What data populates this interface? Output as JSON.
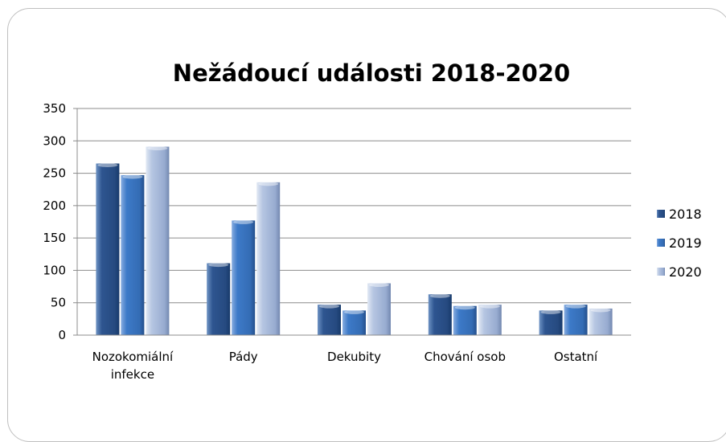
{
  "chart_data": {
    "type": "bar",
    "title": "Nežádoucí události 2018-2020",
    "xlabel": "",
    "ylabel": "",
    "categories": [
      "Nozokomiální infekce",
      "Pády",
      "Dekubity",
      "Chování osob",
      "Ostatní"
    ],
    "series": [
      {
        "name": "2018",
        "values": [
          265,
          111,
          47,
          63,
          38
        ],
        "color": "#2e5590"
      },
      {
        "name": "2019",
        "values": [
          247,
          177,
          38,
          45,
          47
        ],
        "color": "#3d7ac8"
      },
      {
        "name": "2020",
        "values": [
          291,
          236,
          80,
          47,
          41
        ],
        "color": "#a3b6d8"
      }
    ],
    "ylim": [
      0,
      350
    ],
    "yticks": [
      0,
      50,
      100,
      150,
      200,
      250,
      300,
      350
    ],
    "grid": true,
    "legend_position": "right"
  }
}
